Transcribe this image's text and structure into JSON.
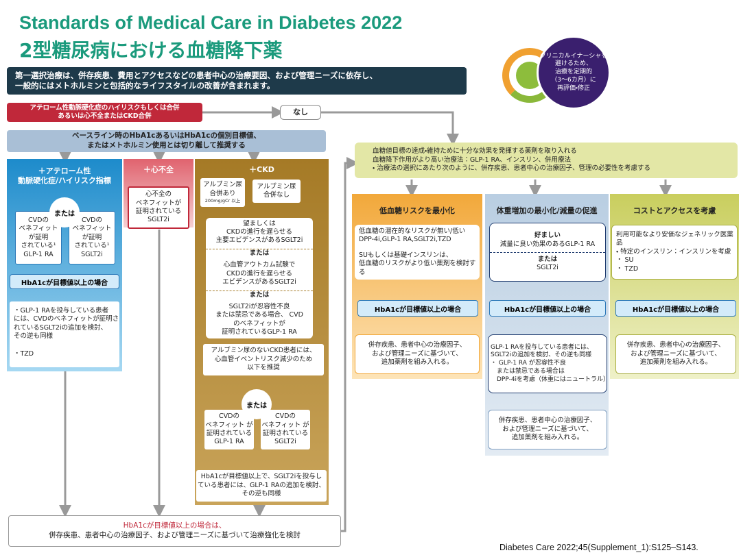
{
  "header": {
    "title": "Standards of Medical Care in Diabetes 2022",
    "subtitle": "2型糖尿病における血糖降下薬",
    "intro": [
      "第一選択治療は、併存疾患、費用とアクセスなどの患者中心の治療要因、および管理ニーズに依存し、",
      "一般的にはメトホルミンと包括的なライフスタイルの改善が含まれます。"
    ]
  },
  "reminder": [
    "クリニカルイナーシャを",
    "避けるため、",
    "治療を定期的",
    "（3～6カ月）に",
    "再評価・修正"
  ],
  "condition": [
    "アテローム性動脈硬化症のハイリスクもしくは合併",
    "あるいは心不全またはCKD合併"
  ],
  "none_label": "なし",
  "baseline": [
    "ベースライン時のHbA1cあるいはHbA1cの個別目標値、",
    "またはメトホルミン使用とは切り離して推奨する"
  ],
  "ascvd": {
    "header": [
      "＋アテローム性",
      "動脈硬化症/ハイリスク指標"
    ],
    "or": "または",
    "option_a": [
      "CVDの",
      "ベネフィット",
      "が証明",
      "されている¹",
      "GLP-1 RA"
    ],
    "option_b": [
      "CVDの",
      "ベネフィット",
      "が証明",
      "されている¹",
      "SGLT2i"
    ],
    "hba1c": "HbA1cが目標値以上の場合",
    "next": [
      "・GLP-1 RAを投与している患者",
      "には、CVDのベネフィットが証明さ",
      "れているSGLT2iの追加を検討、",
      "その逆も同様"
    ],
    "tzd": "・TZD"
  },
  "hf": {
    "header": "＋心不全",
    "option": [
      "心不全の",
      "ベネフィットが",
      "証明されている",
      "SGLT2i"
    ]
  },
  "ckd": {
    "header": "＋CKD",
    "albuminuria": [
      "アルブミン尿",
      "合併あり"
    ],
    "albuminuria_note": "200mg/gCr 以上",
    "no_albuminuria": [
      "アルブミン尿",
      "合併なし"
    ],
    "preferred": [
      "望ましくは",
      "CKDの進行を遅らせる",
      "主要エビデンスがあるSGLT2i"
    ],
    "or1": "または",
    "alt1": [
      "心血管アウトカム試験で",
      "CKDの進行を遅らせる",
      "エビデンスがあるSGLT2i"
    ],
    "or2": "または",
    "alt2": [
      "SGLT2iが忍容性不良",
      "または禁忌である場合、 CVD",
      "のベネフィットが",
      "証明されているGLP-1 RA"
    ],
    "no_alb_text": [
      "アルブミン尿のないCKD患者には、",
      "心血管イベントリスク減少のため",
      "以下を推奨"
    ],
    "or": "または",
    "option_a": [
      "CVDの",
      "ベネフィット が",
      "証明されている",
      "GLP-1 RA"
    ],
    "option_b": [
      "CVDの",
      "ベネフィット が",
      "証明されている",
      "SGLT2i"
    ],
    "next": [
      "HbA1cが目標値以上で、SGLT2iを投与し",
      "ている患者には、GLP-1 RAの追加を検討、",
      "その逆も同様"
    ]
  },
  "intensify": {
    "lead": "HbA1cが目標値以上の場合は、",
    "text": "併存疾患、患者中心の治療因子、および管理ニーズに基づいて治療強化を検討"
  },
  "goal": [
    "血糖値目標の達成・維持ために十分な効果を発揮する薬剤を取り入れる",
    "血糖降下作用がより高い治療法：GLP-1 RA、インスリン、併用療法",
    "・ 治療法の選択にあたり次のように、併存疾患、患者中心の治療因子、管理の必要性を考慮する"
  ],
  "hypo": {
    "header": "低血糖リスクを最小化",
    "option": [
      "低血糖の潜在的なリスクが無い/低い",
      "DPP-4i,GLP-1 RA,SGLT2i,TZD"
    ],
    "option_note": [
      "SUもしくは基礎インスリンは、",
      "低血糖のリスクがより低い薬剤を検討する"
    ],
    "hba1c": "HbA1cが目標値以上の場合",
    "next": [
      "併存疾患、患者中心の治療因子、",
      "および管理ニーズに基づいて、",
      "追加薬剤を組み入れる。"
    ]
  },
  "weight": {
    "header": "体重増加の最小化/減量の促進",
    "preferred": "好ましい",
    "option_a": "減量に良い効果のあるGLP-1 RA",
    "or": "または",
    "option_b": "SGLT2i",
    "hba1c": "HbA1cが目標値以上の場合",
    "next": [
      "GLP-1 RAを投与している患者には、",
      "SGLT2iの追加を検討、その逆も同様",
      "・ GLP-1 RA が忍容性不良",
      "　または禁忌である場合は",
      "　DPP-4iを考慮（体重にはニュートラル）"
    ],
    "final": [
      "併存疾患、患者中心の治療因子、",
      "および管理ニーズに基づいて、",
      "追加薬剤を組み入れる。"
    ]
  },
  "cost": {
    "header": "コストとアクセスを考慮",
    "option": [
      "利用可能なより安価なジェネリック医薬品",
      "・ 特定のインスリン：インスリンを考慮",
      "・ SU",
      "・ TZD"
    ],
    "hba1c": "HbA1cが目標値以上の場合",
    "next": [
      "併存疾患、患者中心の治療因子、",
      "および管理ニーズに基づいて、",
      "追加薬剤を組み入れる。"
    ]
  },
  "citation": "Diabetes Care 2022;45(Supplement_1):S125–S143."
}
